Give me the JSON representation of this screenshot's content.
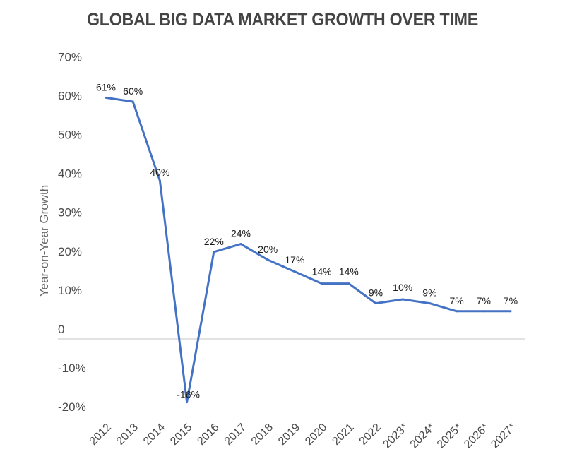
{
  "chart_data": {
    "type": "line",
    "title": "GLOBAL BIG DATA MARKET GROWTH OVER TIME",
    "xlabel": "",
    "ylabel": "Year-on-Year Growth",
    "categories": [
      "2012",
      "2013",
      "2014",
      "2015",
      "2016",
      "2017",
      "2018",
      "2019",
      "2020",
      "2021",
      "2022",
      "2023*",
      "2024*",
      "2025*",
      "2026*",
      "2027*"
    ],
    "series": [
      {
        "name": "Year-on-Year Growth",
        "values": [
          61,
          60,
          40,
          -16,
          22,
          24,
          20,
          17,
          14,
          14,
          9,
          10,
          9,
          7,
          7,
          7
        ],
        "labels": [
          "61%",
          "60%",
          "40%",
          "-16%",
          "22%",
          "24%",
          "20%",
          "17%",
          "14%",
          "14%",
          "9%",
          "10%",
          "9%",
          "7%",
          "7%",
          "7%"
        ],
        "color": "#4472C4"
      }
    ],
    "ylim": [
      -20,
      70
    ],
    "yticks": [
      {
        "value": 70,
        "label": "70%"
      },
      {
        "value": 60,
        "label": "60%"
      },
      {
        "value": 50,
        "label": "50%"
      },
      {
        "value": 40,
        "label": "40%"
      },
      {
        "value": 30,
        "label": "30%"
      },
      {
        "value": 20,
        "label": "20%"
      },
      {
        "value": 10,
        "label": "10%"
      },
      {
        "value": 0,
        "label": "0"
      },
      {
        "value": -10,
        "label": "-10%"
      },
      {
        "value": -20,
        "label": "-20%"
      }
    ],
    "grid": false,
    "zero_line": true,
    "legend": "none"
  }
}
